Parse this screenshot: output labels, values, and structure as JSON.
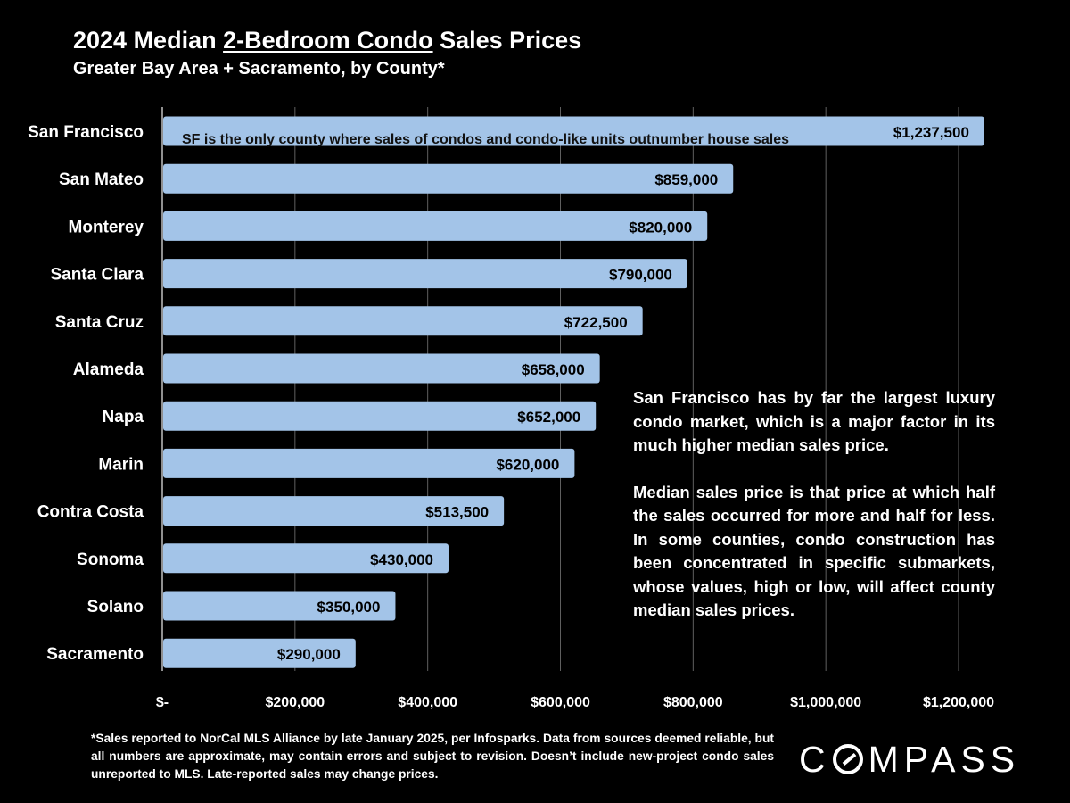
{
  "title": {
    "prefix": "2024 Median ",
    "underlined": "2-Bedroom Condo",
    "suffix": " Sales Prices"
  },
  "subtitle": "Greater Bay Area + Sacramento, by County*",
  "chart_data": {
    "type": "bar",
    "orientation": "horizontal",
    "categories": [
      "San Francisco",
      "San Mateo",
      "Monterey",
      "Santa Clara",
      "Santa Cruz",
      "Alameda",
      "Napa",
      "Marin",
      "Contra Costa",
      "Sonoma",
      "Solano",
      "Sacramento"
    ],
    "values": [
      1237500,
      859000,
      820000,
      790000,
      722500,
      658000,
      652000,
      620000,
      513500,
      430000,
      350000,
      290000
    ],
    "value_labels": [
      "$1,237,500",
      "$859,000",
      "$820,000",
      "$790,000",
      "$722,500",
      "$658,000",
      "$652,000",
      "$620,000",
      "$513,500",
      "$430,000",
      "$350,000",
      "$290,000"
    ],
    "xlim": [
      0,
      1200000
    ],
    "xticks": [
      0,
      200000,
      400000,
      600000,
      800000,
      1000000,
      1200000
    ],
    "xtick_labels": [
      "$-",
      "$200,000",
      "$400,000",
      "$600,000",
      "$800,000",
      "$1,000,000",
      "$1,200,000"
    ],
    "grid": "vertical",
    "bar_color": "#a3c4e8",
    "bar_annotation": {
      "category": "San Francisco",
      "text": "SF is the only county where sales of condos and condo-like units outnumber house sales"
    }
  },
  "side_note": {
    "paragraph1": "San Francisco has by far the largest luxury condo market, which is a major factor in its much higher median sales price.",
    "paragraph2": "Median sales price is that price at which half the sales occurred for more and half for less. In some counties, condo construction has been concentrated in specific submarkets, whose values, high or low, will affect county median sales prices."
  },
  "footnote": "*Sales reported to NorCal MLS Alliance by late January 2025, per Infosparks. Data from sources deemed reliable, but all numbers are approximate, may contain errors and subject to revision. Doesn’t include new-project condo sales unreported to MLS. Late-reported sales may change prices.",
  "logo": {
    "before": "C",
    "after": "MPASS"
  }
}
